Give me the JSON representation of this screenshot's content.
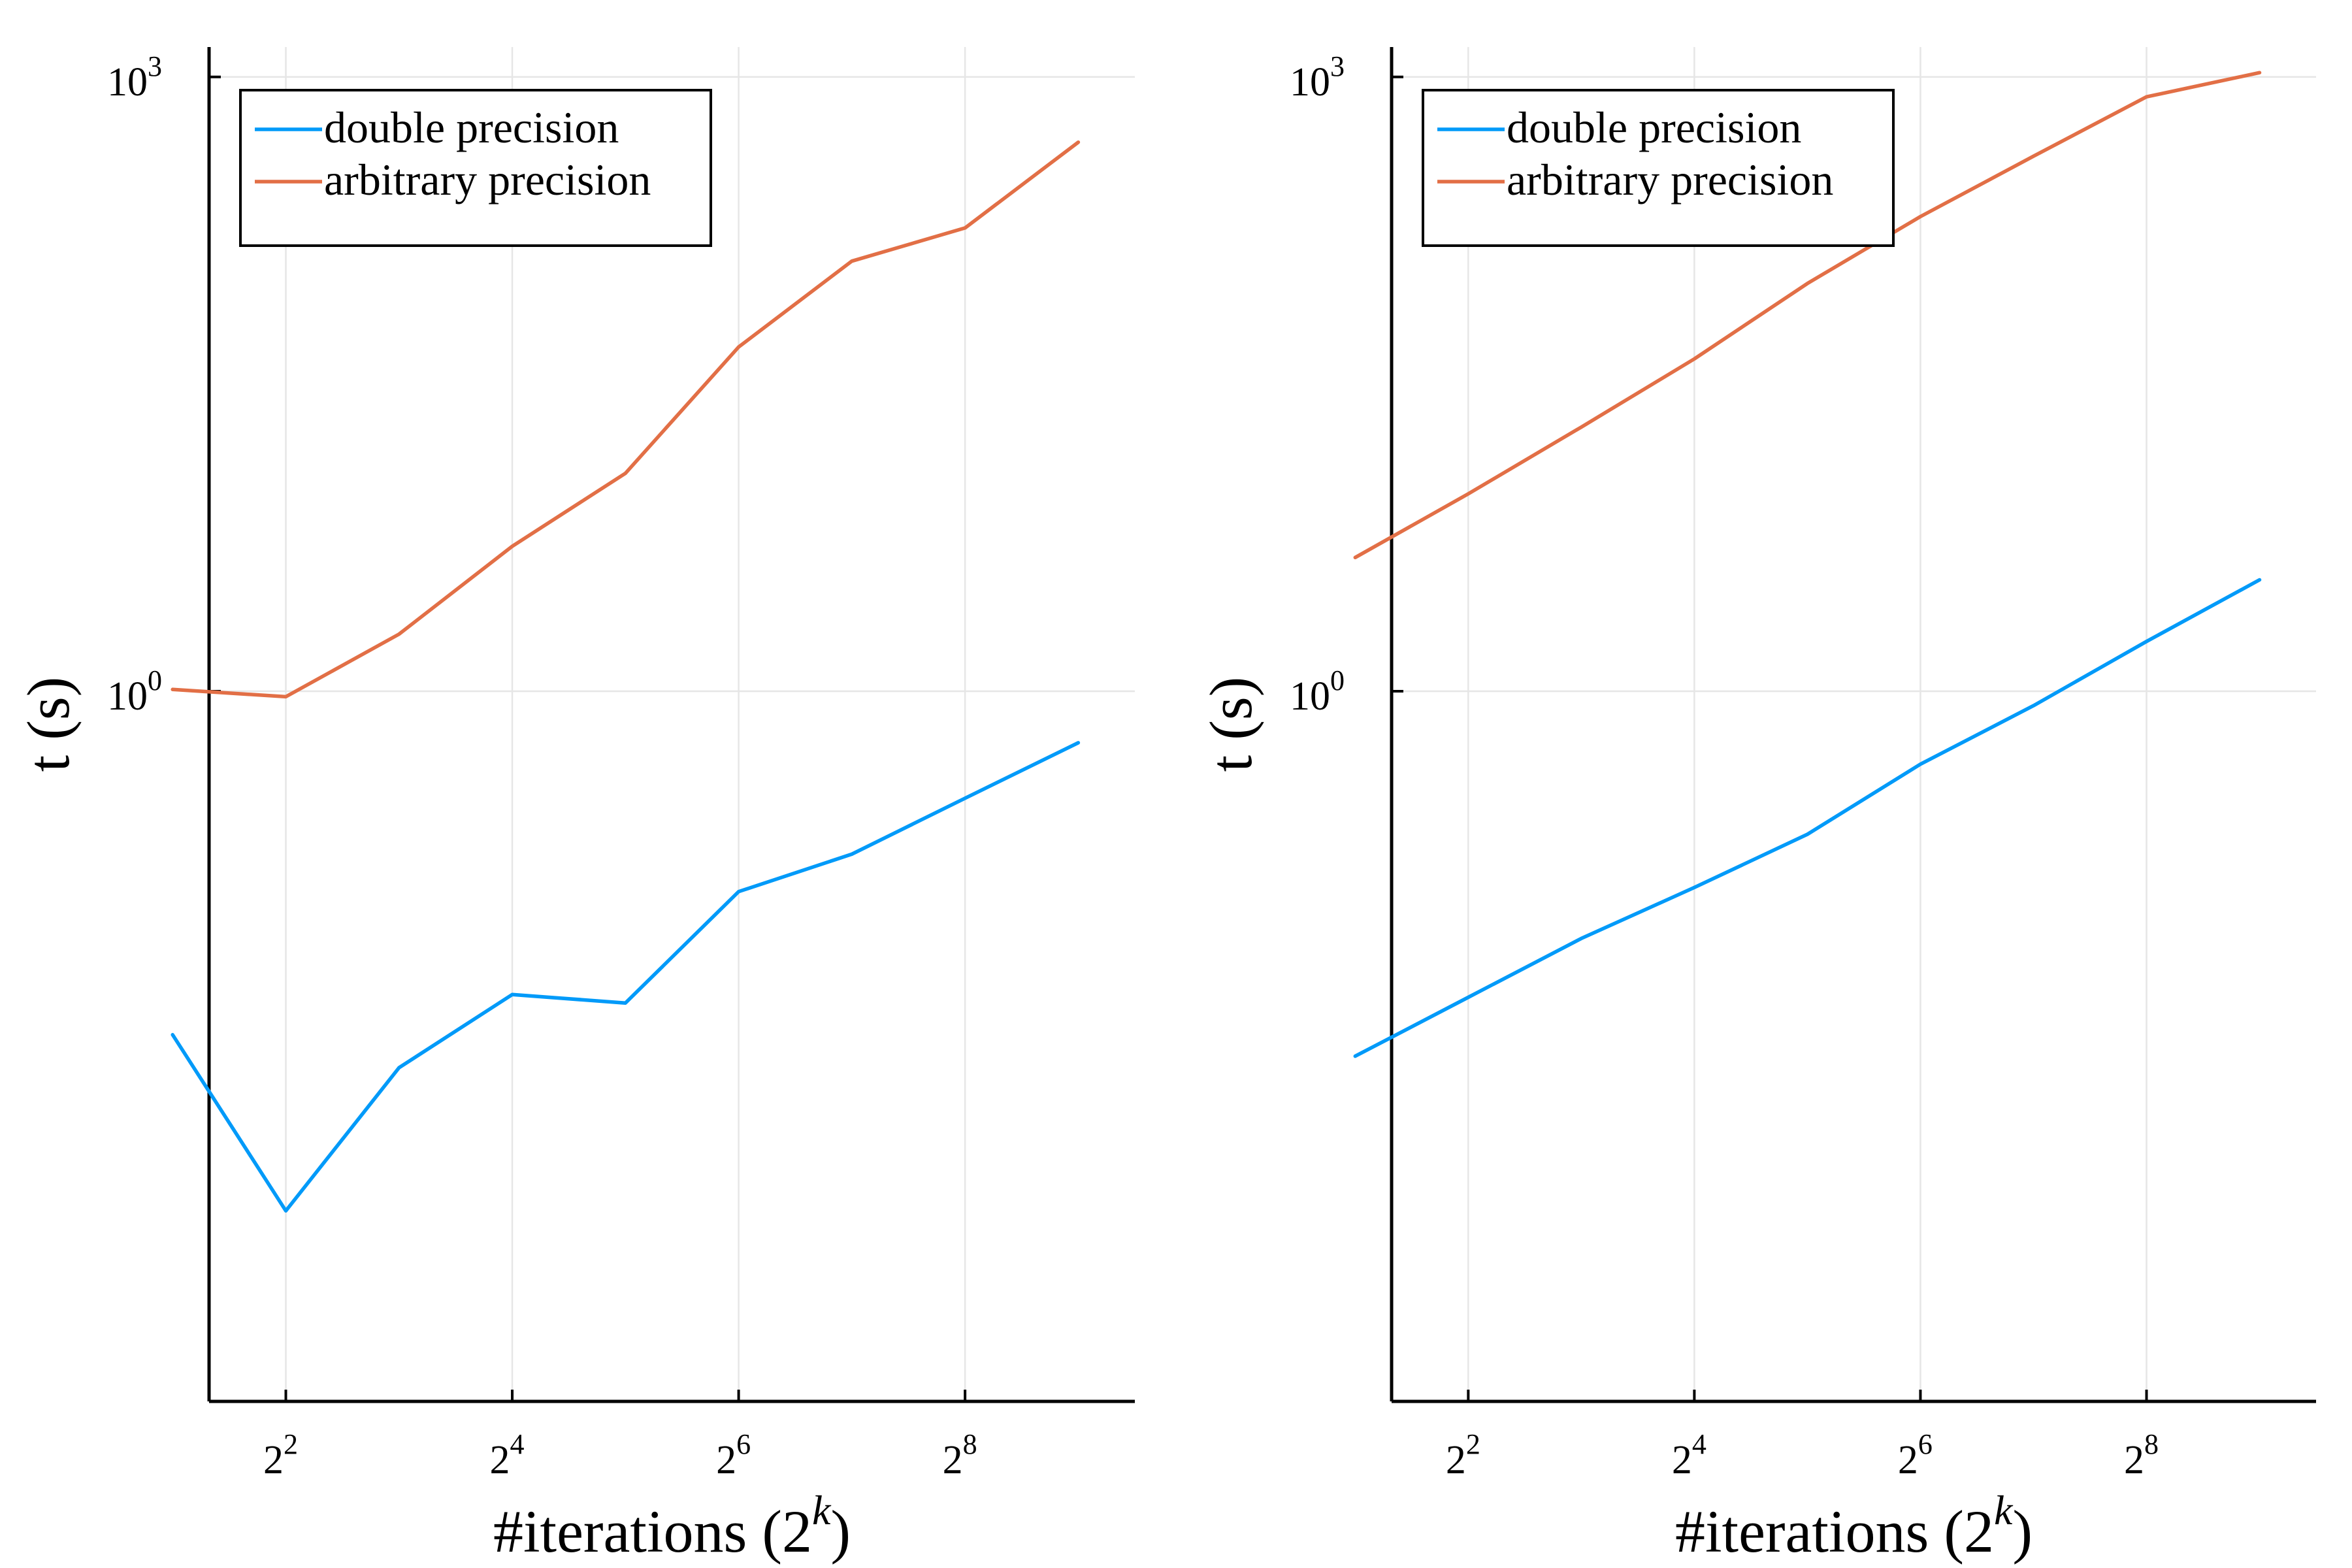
{
  "chart_data": [
    {
      "type": "line",
      "title": "",
      "xlabel": "#iterations (2",
      "xlabel_sup": "k",
      "xlabel_suffix": ")",
      "ylabel": "t (s)",
      "xscale": "log2",
      "yscale": "log10",
      "xlim": [
        2.5,
        724
      ],
      "ylim": [
        0.00034,
        1400
      ],
      "xticks": [
        {
          "base": "2",
          "exp": "2",
          "value": 4
        },
        {
          "base": "2",
          "exp": "4",
          "value": 16
        },
        {
          "base": "2",
          "exp": "6",
          "value": 64
        },
        {
          "base": "2",
          "exp": "8",
          "value": 256
        }
      ],
      "yticks": [
        {
          "base": "10",
          "exp": "0",
          "value": 1
        },
        {
          "base": "10",
          "exp": "3",
          "value": 1000
        }
      ],
      "grid": true,
      "legend": "top-left",
      "x": [
        2,
        4,
        8,
        16,
        32,
        64,
        128,
        256,
        512
      ],
      "series": [
        {
          "name": "double precision",
          "color": "#009af9",
          "values": [
            0.021,
            0.0029,
            0.0145,
            0.033,
            0.03,
            0.105,
            0.16,
            0.3,
            0.56
          ]
        },
        {
          "name": "arbitrary precision",
          "color": "#e26f46",
          "values": [
            1.02,
            0.94,
            1.9,
            5.1,
            11.6,
            48,
            126,
            183,
            480
          ]
        }
      ]
    },
    {
      "type": "line",
      "title": "",
      "xlabel": "#iterations (2",
      "xlabel_sup": "k",
      "xlabel_suffix": ")",
      "ylabel": "t (s)",
      "xscale": "log2",
      "yscale": "log10",
      "xlim": [
        2.5,
        724
      ],
      "ylim": [
        0.00034,
        1400
      ],
      "xticks": [
        {
          "base": "2",
          "exp": "2",
          "value": 4
        },
        {
          "base": "2",
          "exp": "4",
          "value": 16
        },
        {
          "base": "2",
          "exp": "6",
          "value": 64
        },
        {
          "base": "2",
          "exp": "8",
          "value": 256
        }
      ],
      "yticks": [
        {
          "base": "10",
          "exp": "0",
          "value": 1
        },
        {
          "base": "10",
          "exp": "3",
          "value": 1000
        }
      ],
      "grid": true,
      "legend": "top-left",
      "x": [
        2,
        4,
        8,
        16,
        32,
        64,
        128,
        256,
        512
      ],
      "series": [
        {
          "name": "double precision",
          "color": "#009af9",
          "values": [
            0.0165,
            0.032,
            0.062,
            0.11,
            0.2,
            0.44,
            0.85,
            1.75,
            3.5
          ]
        },
        {
          "name": "arbitrary precision",
          "color": "#e26f46",
          "values": [
            4.5,
            9.2,
            19.5,
            42,
            98,
            208,
            410,
            800,
            1050
          ]
        }
      ]
    }
  ]
}
